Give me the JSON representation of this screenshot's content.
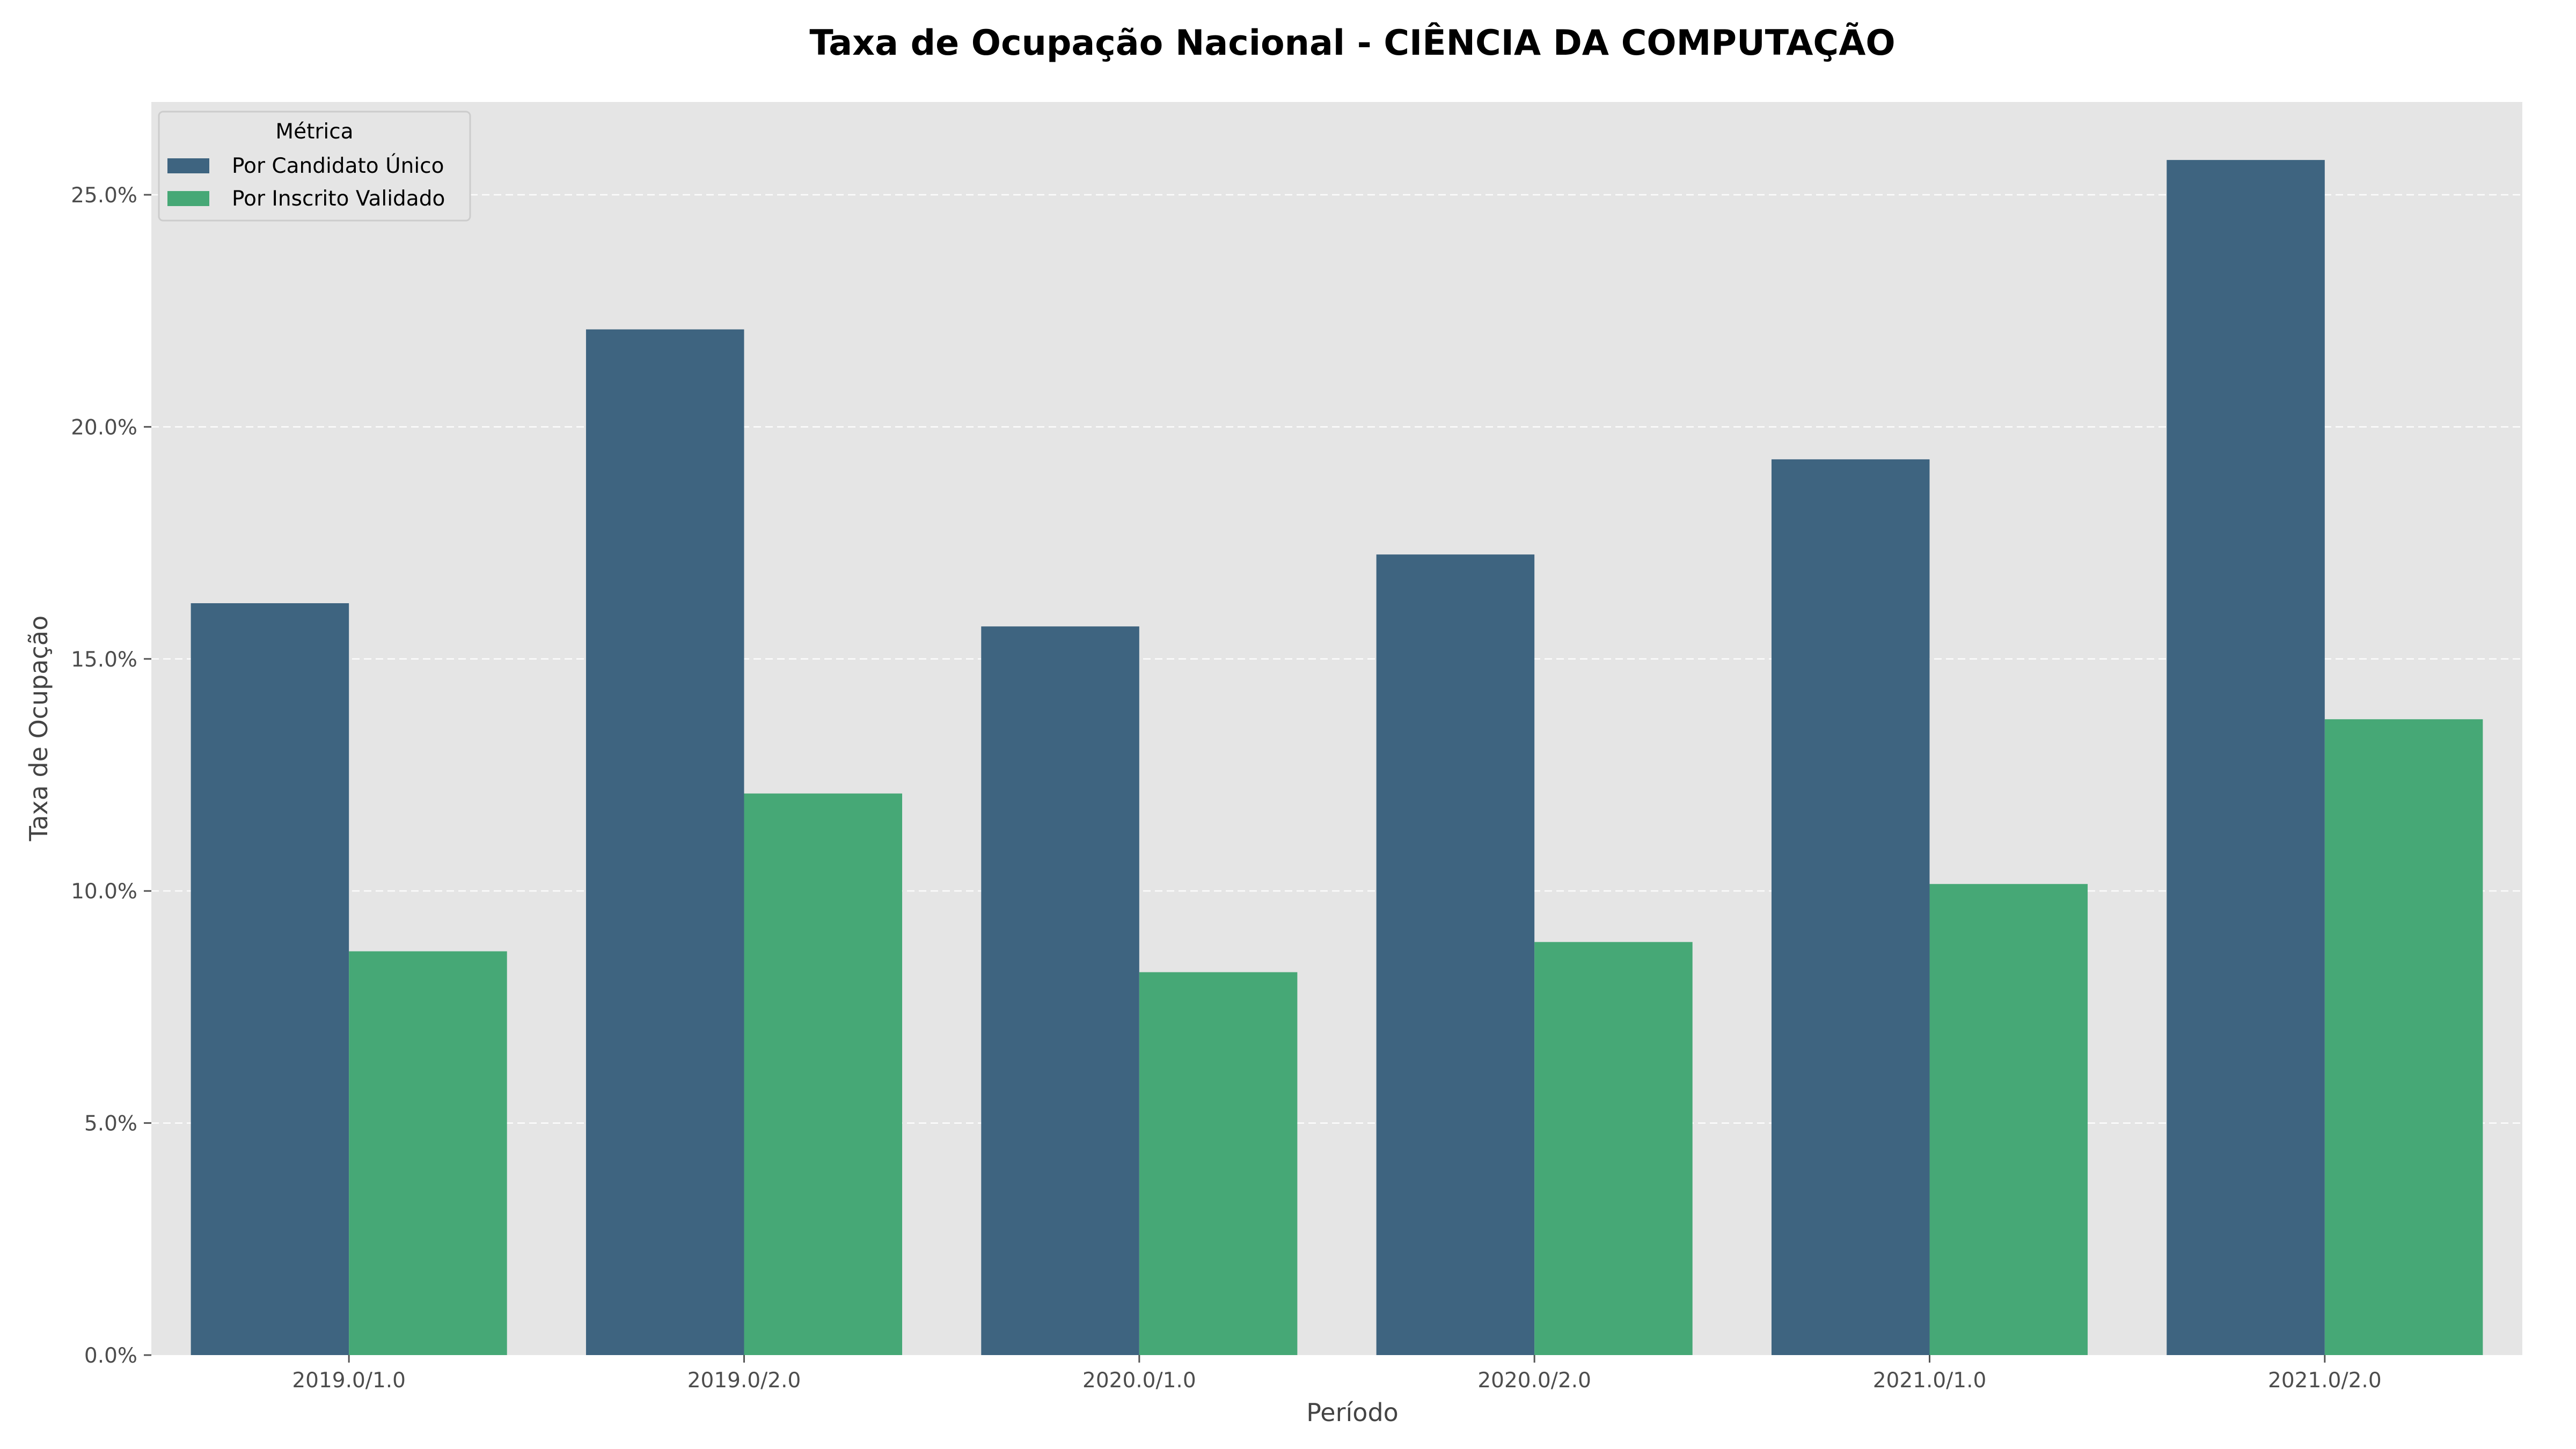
{
  "chart_data": {
    "type": "bar",
    "title": "Taxa de Ocupação Nacional - CIÊNCIA DA COMPUTAÇÃO",
    "xlabel": "Período",
    "ylabel": "Taxa de Ocupação",
    "categories": [
      "2019.0/1.0",
      "2019.0/2.0",
      "2020.0/1.0",
      "2020.0/2.0",
      "2021.0/1.0",
      "2021.0/2.0"
    ],
    "series": [
      {
        "name": "Por Candidato Único",
        "color": "#3e6480",
        "values": [
          16.2,
          22.1,
          15.7,
          17.25,
          19.3,
          25.75
        ]
      },
      {
        "name": "Por Inscrito Validado",
        "color": "#46a876",
        "values": [
          8.7,
          12.1,
          8.25,
          8.9,
          10.15,
          13.7
        ]
      }
    ],
    "ylim": [
      0,
      27
    ],
    "yticks": [
      0,
      5,
      10,
      15,
      20,
      25
    ],
    "ytick_labels": [
      "0.0%",
      "5.0%",
      "10.0%",
      "15.0%",
      "20.0%",
      "25.0%"
    ],
    "grid": true,
    "legend": {
      "title": "Métrica",
      "placement": "top-left"
    },
    "background_color": "#e5e5e5"
  }
}
